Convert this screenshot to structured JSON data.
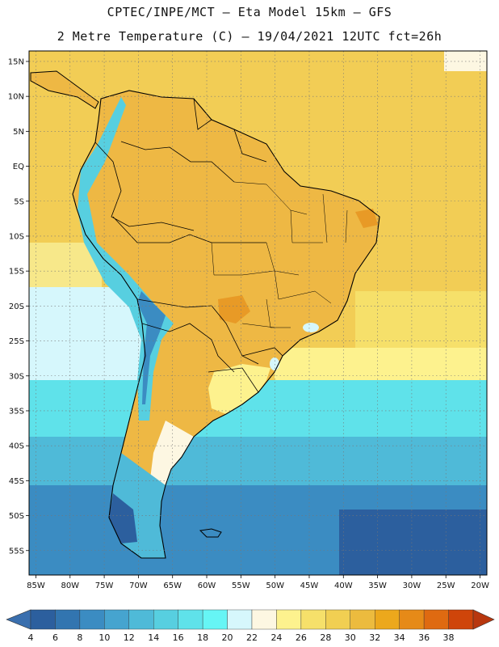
{
  "header": {
    "line1": "CPTEC/INPE/MCT –  Eta Model 15km – GFS",
    "line2": "2 Metre Temperature (C) – 19/04/2021 12UTC fct=26h"
  },
  "map": {
    "lon_range": [
      -86,
      -19
    ],
    "lat_range": [
      -58.5,
      16.5
    ],
    "lon_ticks": [
      {
        "v": -85,
        "label": "85W"
      },
      {
        "v": -80,
        "label": "80W"
      },
      {
        "v": -75,
        "label": "75W"
      },
      {
        "v": -70,
        "label": "70W"
      },
      {
        "v": -65,
        "label": "65W"
      },
      {
        "v": -60,
        "label": "60W"
      },
      {
        "v": -55,
        "label": "55W"
      },
      {
        "v": -50,
        "label": "50W"
      },
      {
        "v": -45,
        "label": "45W"
      },
      {
        "v": -40,
        "label": "40W"
      },
      {
        "v": -35,
        "label": "35W"
      },
      {
        "v": -30,
        "label": "30W"
      },
      {
        "v": -25,
        "label": "25W"
      },
      {
        "v": -20,
        "label": "20W"
      }
    ],
    "lat_ticks": [
      {
        "v": 15,
        "label": "15N"
      },
      {
        "v": 10,
        "label": "10N"
      },
      {
        "v": 5,
        "label": "5N"
      },
      {
        "v": 0,
        "label": "EQ"
      },
      {
        "v": -5,
        "label": "5S"
      },
      {
        "v": -10,
        "label": "10S"
      },
      {
        "v": -15,
        "label": "15S"
      },
      {
        "v": -20,
        "label": "20S"
      },
      {
        "v": -25,
        "label": "25S"
      },
      {
        "v": -30,
        "label": "30S"
      },
      {
        "v": -35,
        "label": "35S"
      },
      {
        "v": -40,
        "label": "40S"
      },
      {
        "v": -45,
        "label": "45S"
      },
      {
        "v": -50,
        "label": "50S"
      },
      {
        "v": -55,
        "label": "55S"
      }
    ]
  },
  "colorbar": {
    "labels": [
      "4",
      "6",
      "8",
      "10",
      "12",
      "14",
      "16",
      "18",
      "20",
      "22",
      "24",
      "26",
      "28",
      "30",
      "32",
      "34",
      "36",
      "38"
    ],
    "colors": [
      "#2c5f9e",
      "#3275b0",
      "#3b8cc2",
      "#46a4cf",
      "#4fbad8",
      "#57cfe0",
      "#5fe2ea",
      "#66f5f5",
      "#d6f7fc",
      "#fdf7e2",
      "#fdf28e",
      "#f6e06a",
      "#f1cf52",
      "#ecbb3e",
      "#eca81c",
      "#e68a18",
      "#df6a11",
      "#cf450a"
    ],
    "under_color": "#3a6fae",
    "over_color": "#b8370e"
  },
  "palette": {
    "ocean_tropical": "#f2cd55",
    "ocean_subtropical": "#f7e88a",
    "land_warm": "#eeb844",
    "land_hot": "#e89a26",
    "andes_cool": "#57cfe0",
    "south_cold": "#2e65a8"
  }
}
